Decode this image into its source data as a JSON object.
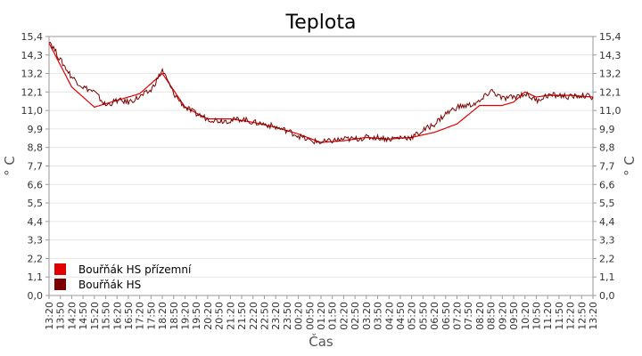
{
  "chart_data": {
    "type": "line",
    "title": "Teplota",
    "xlabel": "Čas",
    "ylabel_left": "° C",
    "ylabel_right": "° C",
    "ylim": [
      0,
      15.4
    ],
    "y_ticks": [
      "0,0",
      "1,1",
      "2,2",
      "3,3",
      "4,4",
      "5,5",
      "6,6",
      "7,7",
      "8,8",
      "9,9",
      "11,0",
      "12,1",
      "13,2",
      "14,3",
      "15,4"
    ],
    "x_ticks": [
      "13:20",
      "13:50",
      "14:20",
      "14:50",
      "15:20",
      "15:50",
      "16:20",
      "16:50",
      "17:20",
      "17:50",
      "18:20",
      "18:50",
      "19:20",
      "19:50",
      "20:20",
      "20:50",
      "21:20",
      "21:50",
      "22:20",
      "22:50",
      "23:20",
      "23:50",
      "00:20",
      "00:50",
      "01:20",
      "01:50",
      "02:20",
      "02:50",
      "03:20",
      "03:50",
      "04:20",
      "04:50",
      "05:20",
      "05:50",
      "06:20",
      "06:50",
      "07:20",
      "07:50",
      "08:20",
      "08:50",
      "09:20",
      "09:50",
      "10:20",
      "10:50",
      "11:20",
      "11:50",
      "12:20",
      "12:50",
      "13:20"
    ],
    "grid": true,
    "legend_position": "bottom-left",
    "series": [
      {
        "name": "Bouřňák HS přízemní",
        "color": "#e00000",
        "x_index": [
          0,
          2,
          4,
          6,
          8,
          10,
          12,
          14,
          16,
          18,
          20,
          22,
          24,
          26,
          28,
          30,
          32,
          34,
          36,
          38,
          40,
          41,
          42,
          43,
          44,
          46,
          48
        ],
        "values": [
          15.0,
          12.4,
          11.2,
          11.6,
          12.0,
          13.2,
          11.2,
          10.5,
          10.5,
          10.3,
          10.0,
          9.6,
          9.1,
          9.2,
          9.4,
          9.3,
          9.4,
          9.7,
          10.2,
          11.3,
          11.3,
          11.5,
          12.1,
          11.8,
          11.9,
          11.9,
          11.8
        ]
      },
      {
        "name": "Bouřňák HS",
        "color": "#7a0000",
        "x_index": [
          0,
          1,
          2,
          3,
          4,
          5,
          6,
          7,
          8,
          9,
          10,
          11,
          12,
          13,
          14,
          15,
          16,
          17,
          18,
          19,
          20,
          21,
          22,
          23,
          24,
          25,
          26,
          27,
          28,
          29,
          30,
          31,
          32,
          33,
          34,
          35,
          36,
          37,
          38,
          39,
          40,
          41,
          42,
          43,
          44,
          45,
          46,
          47,
          48
        ],
        "values": [
          15.2,
          14.0,
          13.0,
          12.4,
          12.1,
          11.3,
          11.6,
          11.5,
          11.8,
          12.2,
          13.4,
          12.0,
          11.2,
          10.8,
          10.5,
          10.4,
          10.4,
          10.5,
          10.3,
          10.2,
          10.0,
          9.8,
          9.5,
          9.2,
          9.1,
          9.2,
          9.3,
          9.3,
          9.4,
          9.4,
          9.3,
          9.4,
          9.4,
          9.8,
          10.2,
          10.8,
          11.2,
          11.3,
          11.5,
          12.2,
          11.7,
          11.8,
          12.0,
          11.6,
          11.9,
          11.9,
          11.8,
          11.9,
          11.8
        ]
      }
    ]
  }
}
